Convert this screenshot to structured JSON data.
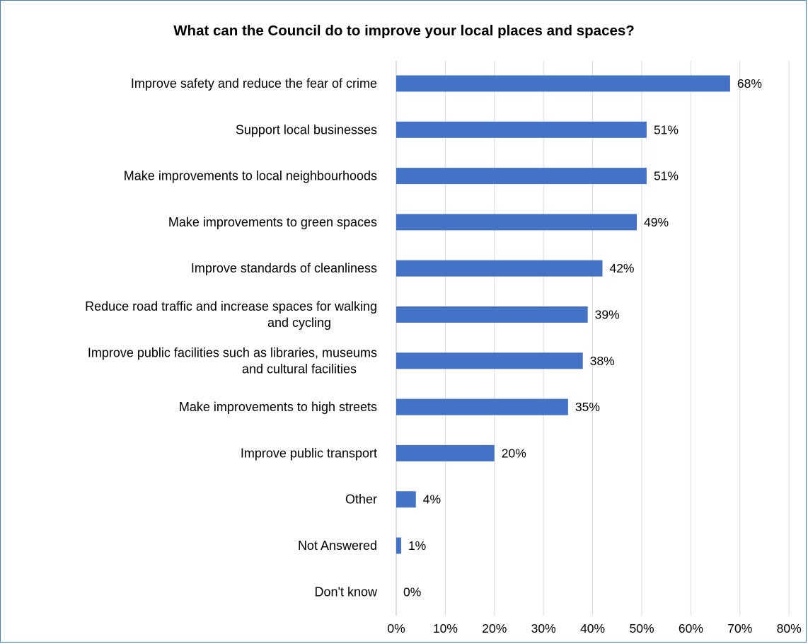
{
  "chart_data": {
    "type": "bar",
    "orientation": "horizontal",
    "title": "What can the Council do to improve your local places and spaces?",
    "categories": [
      "Improve safety and reduce the fear of crime",
      "Support local businesses",
      "Make improvements to local neighbourhoods",
      "Make improvements to green spaces",
      "Improve standards of cleanliness",
      "Reduce road traffic and increase spaces for walking and cycling",
      "Improve public facilities such as libraries, museums and cultural facilities",
      "Make improvements to high streets",
      "Improve public transport",
      "Other",
      "Not Answered",
      "Don't know"
    ],
    "category_lines": [
      [
        "Improve safety and reduce the fear of crime"
      ],
      [
        "Support local businesses"
      ],
      [
        "Make improvements to local neighbourhoods"
      ],
      [
        "Make improvements to green spaces"
      ],
      [
        "Improve standards of cleanliness"
      ],
      [
        "Reduce road traffic and increase spaces for walking",
        "and cycling"
      ],
      [
        "Improve public facilities such as libraries, museums",
        "and cultural facilities"
      ],
      [
        "Make improvements to high streets"
      ],
      [
        "Improve public transport"
      ],
      [
        "Other"
      ],
      [
        "Not Answered"
      ],
      [
        "Don't know"
      ]
    ],
    "values": [
      68,
      51,
      51,
      49,
      42,
      39,
      38,
      35,
      20,
      4,
      1,
      0
    ],
    "value_labels": [
      "68%",
      "51%",
      "51%",
      "49%",
      "42%",
      "39%",
      "38%",
      "35%",
      "20%",
      "4%",
      "1%",
      "0%"
    ],
    "xlim": [
      0,
      80
    ],
    "xticks": [
      0,
      10,
      20,
      30,
      40,
      50,
      60,
      70,
      80
    ],
    "xtick_labels": [
      "0%",
      "10%",
      "20%",
      "30%",
      "40%",
      "50%",
      "60%",
      "70%",
      "80%"
    ],
    "grid": true,
    "bar_color": "#4472c4",
    "grid_color": "#d9d9d9",
    "border_color": "#4a7ac0"
  }
}
